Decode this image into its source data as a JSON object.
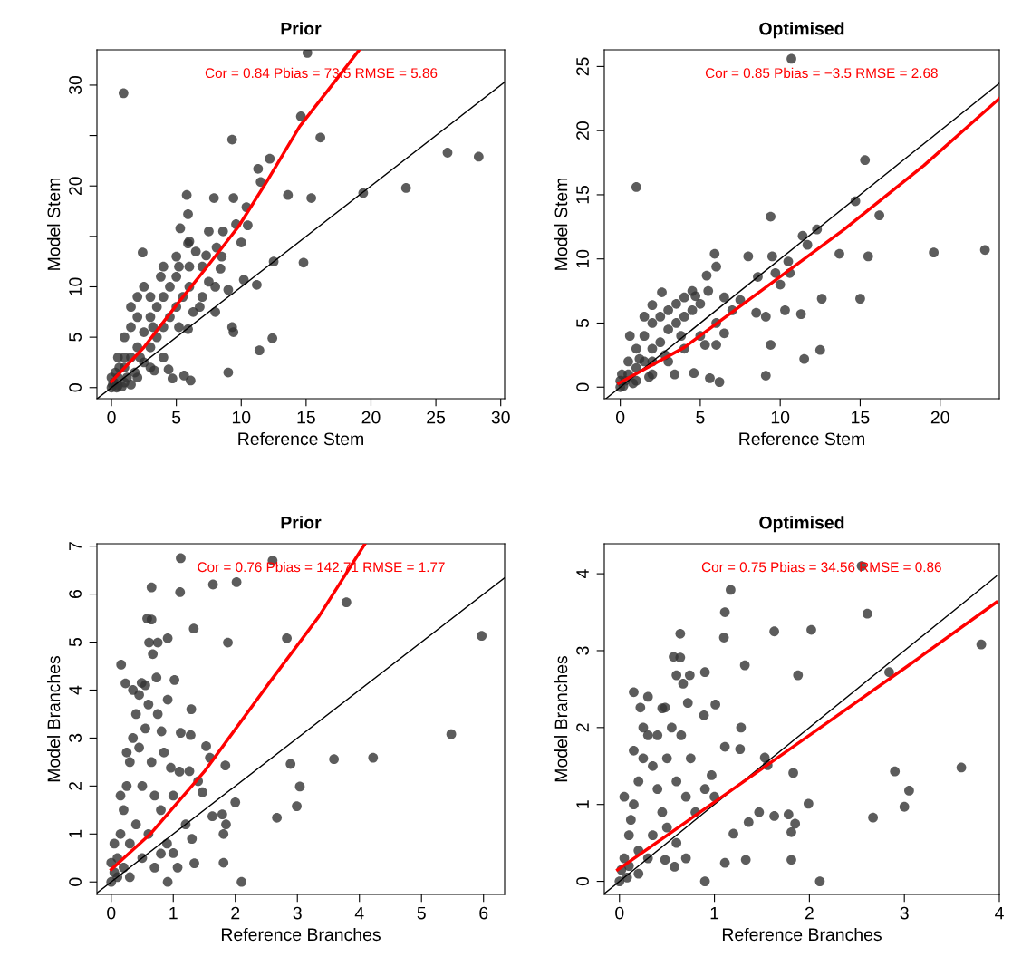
{
  "chart_data": [
    {
      "type": "scatter",
      "title": "Prior",
      "xlabel": "Reference Stem",
      "ylabel": "Model Stem",
      "annotations": [
        "Cor = 0.84 Pbias = 73.5 RMSE = 5.86"
      ],
      "xlim": [
        -1.12,
        30.3
      ],
      "ylim": [
        -1.1,
        33.5
      ],
      "xticks": [
        0,
        5,
        10,
        15,
        20,
        25,
        30
      ],
      "yticks": [
        0,
        5,
        10,
        {
          "value": 15,
          "label": null
        },
        20,
        {
          "value": 25,
          "label": null
        },
        30
      ],
      "series": [
        {
          "marker": "circle",
          "color": "#333333",
          "x": [
            15.1,
            0.93,
            14.6,
            9.3,
            16.1,
            25.9,
            28.3,
            12.2,
            11.3,
            11.5,
            5.8,
            7.9,
            9.4,
            13.6,
            15.4,
            19.4,
            22.7,
            10.4,
            5.9,
            9.6,
            10.5,
            8.6,
            5.3,
            5.9,
            10.0,
            2.4,
            8.1,
            12.5,
            14.8,
            7.3,
            8.4,
            10.2,
            11.2,
            9.0,
            6.3,
            5.2,
            5.9,
            9.3,
            9.4,
            12.4,
            11.4,
            9.0,
            3.3,
            4.4,
            4.7,
            5.6,
            6.1,
            0,
            0.2,
            0.5,
            1,
            1.5,
            2,
            2.5,
            3,
            3.5,
            4,
            4.5,
            5,
            1,
            2,
            3,
            0.5,
            1.5,
            2,
            3,
            4,
            1,
            0.5,
            3,
            4,
            5,
            6,
            6,
            6.5,
            7,
            7.5,
            8,
            2,
            1.5,
            2.5,
            4,
            5,
            6,
            1,
            2.5,
            0.3,
            0.8,
            1.8,
            3.5,
            4.5,
            5.5,
            7,
            8,
            0.1,
            0.6,
            1.2,
            2.2,
            3.2,
            3.8,
            5.2,
            6.8,
            7.5,
            8.5,
            0,
            0.4,
            1.5
          ],
          "values": [
            33.2,
            29.2,
            26.9,
            24.6,
            24.8,
            23.3,
            22.9,
            22.7,
            21.7,
            20.4,
            19.1,
            18.8,
            18.8,
            19.1,
            18.8,
            19.3,
            19.8,
            17.9,
            17.2,
            16.2,
            16.1,
            15.5,
            15.8,
            14.3,
            14.4,
            13.4,
            13.9,
            12.5,
            12.4,
            13.1,
            11.8,
            10.7,
            10.2,
            9.7,
            7.5,
            6.0,
            5.8,
            6.0,
            5.5,
            4.9,
            3.7,
            1.5,
            1.7,
            1.8,
            0.9,
            1.2,
            0.7,
            0,
            0.5,
            1,
            2,
            3,
            4,
            5.5,
            7,
            8,
            9,
            10,
            11,
            5,
            7,
            9,
            3,
            6,
            1,
            2,
            3,
            0.5,
            0.2,
            4,
            6,
            8,
            10,
            12,
            13.5,
            12,
            10.5,
            10,
            9,
            8,
            10,
            12,
            13,
            14.5,
            3,
            2.5,
            1.5,
            0.1,
            1.5,
            5,
            7,
            9,
            9,
            7.5,
            0.3,
            2,
            1,
            3,
            6,
            11,
            12,
            8,
            15.5,
            13,
            1,
            0,
            0.3
          ]
        },
        {
          "type": "line",
          "color": "#000000",
          "x": [
            -1.1,
            30.3
          ],
          "values": [
            -1.1,
            30.3
          ]
        },
        {
          "type": "line",
          "color": "#ff0000",
          "x": [
            0,
            2.5,
            5.2,
            7.5,
            9.8,
            12,
            14.5,
            17,
            19.1
          ],
          "values": [
            0.6,
            4,
            8.5,
            12.2,
            16,
            20.5,
            25.9,
            30,
            33.5
          ]
        }
      ]
    },
    {
      "type": "scatter",
      "title": "Optimised",
      "xlabel": "Reference Stem",
      "ylabel": "Model Stem",
      "annotations": [
        "Cor = 0.85 Pbias = −3.5 RMSE = 2.68"
      ],
      "xlim": [
        -1.0,
        23.7
      ],
      "ylim": [
        -0.9,
        26.3
      ],
      "xticks": [
        0,
        5,
        10,
        15,
        20
      ],
      "yticks": [
        0,
        5,
        10,
        15,
        20,
        25
      ],
      "series": [
        {
          "marker": "circle",
          "color": "#333333",
          "x": [
            10.7,
            1.0,
            15.3,
            14.7,
            16.2,
            9.4,
            12.3,
            11.4,
            11.7,
            19.6,
            22.8,
            13.7,
            15.5,
            5.9,
            8.0,
            9.5,
            10.5,
            6.0,
            9.7,
            10.6,
            8.6,
            10.0,
            2.6,
            12.6,
            15.0,
            10.3,
            11.3,
            9.1,
            8.5,
            6.5,
            5.3,
            6.0,
            9.4,
            12.5,
            11.5,
            9.1,
            6.2,
            5.6,
            4.6,
            3.4,
            2.0,
            4.7,
            5.4,
            0,
            0.3,
            0.5,
            1,
            1.5,
            2,
            2.5,
            3,
            3.5,
            4,
            4.5,
            5,
            0.5,
            1,
            1.5,
            2,
            3,
            4,
            1,
            2,
            3,
            4,
            5,
            6,
            7,
            2,
            0.2,
            0.8,
            1.2,
            2.5,
            3.5,
            4.5,
            5.5,
            6.5,
            7.5,
            0.1,
            1.8,
            2.8,
            3.8,
            0.6,
            1.5,
            0
          ],
          "values": [
            25.6,
            15.6,
            17.7,
            14.5,
            13.4,
            13.3,
            12.3,
            11.8,
            11.1,
            10.5,
            10.7,
            10.4,
            10.2,
            10.4,
            10.2,
            10.2,
            9.8,
            9.4,
            8.9,
            8.9,
            8.6,
            8.0,
            7.4,
            6.9,
            6.9,
            6.0,
            5.7,
            5.5,
            5.8,
            4.2,
            3.3,
            3.3,
            3.3,
            2.9,
            2.2,
            0.9,
            0.4,
            0.7,
            1.1,
            1.0,
            6.4,
            7.1,
            8.7,
            0,
            0.5,
            1,
            1.5,
            2,
            3,
            3.5,
            4.5,
            5,
            5.5,
            6,
            6.5,
            2,
            3,
            4,
            5,
            6,
            7,
            0.5,
            1,
            2,
            3,
            4,
            5,
            6,
            2,
            0.1,
            0.3,
            2.2,
            5.5,
            6.5,
            7.5,
            7.5,
            7,
            6.8,
            1,
            0.8,
            2.5,
            4,
            4,
            5.5,
            0.5
          ]
        },
        {
          "type": "line",
          "color": "#000000",
          "x": [
            -0.9,
            23.7
          ],
          "values": [
            -0.9,
            23.7
          ]
        },
        {
          "type": "line",
          "color": "#ff0000",
          "x": [
            -0.1,
            4,
            8.9,
            14,
            19,
            23.7
          ],
          "values": [
            0.3,
            3.1,
            7.6,
            12.3,
            17.3,
            22.5
          ]
        }
      ]
    },
    {
      "type": "scatter",
      "title": "Prior",
      "xlabel": "Reference Branches",
      "ylabel": "Model Branches",
      "annotations": [
        "Cor = 0.76 Pbias = 142.71 RMSE = 1.77"
      ],
      "xlim": [
        -0.23,
        6.34
      ],
      "ylim": [
        -0.26,
        7.05
      ],
      "xticks": [
        0,
        1,
        2,
        3,
        4,
        5,
        6
      ],
      "yticks": [
        0,
        1,
        2,
        3,
        4,
        5,
        6,
        7
      ],
      "series": [
        {
          "marker": "circle",
          "color": "#333333",
          "x": [
            1.12,
            2.6,
            0.65,
            1.11,
            1.64,
            2.02,
            3.79,
            0.58,
            0.65,
            1.33,
            5.97,
            0.91,
            2.83,
            0.61,
            0.75,
            1.88,
            0.67,
            0.16,
            0.23,
            0.49,
            0.73,
            1.02,
            0.91,
            1.29,
            0.81,
            1.12,
            1.28,
            5.48,
            1.53,
            1.59,
            1.84,
            2.89,
            3.59,
            4.22,
            0.96,
            1.26,
            1.47,
            3.04,
            2.99,
            2.0,
            2.67,
            1.63,
            1.79,
            1.85,
            1.81,
            1.81,
            1.34,
            1.07,
            0.91,
            2.1,
            0.8,
            0,
            0.05,
            0.1,
            0.15,
            0.2,
            0.25,
            0.3,
            0.35,
            0.4,
            0.45,
            0.5,
            0.55,
            0.6,
            0.65,
            0.7,
            0.3,
            0.4,
            0.5,
            0.6,
            0.8,
            1,
            1.1,
            1.2,
            0.9,
            0.2,
            0.1,
            0.3,
            0.05,
            0.15,
            0.25,
            0.45,
            0.55,
            0.75,
            0.85,
            1.0,
            1.3,
            1.4,
            0.7,
            0.0,
            0.35
          ],
          "values": [
            6.75,
            6.7,
            6.14,
            6.04,
            6.2,
            6.25,
            5.83,
            5.49,
            5.47,
            5.28,
            5.13,
            5.08,
            5.08,
            4.99,
            4.99,
            4.99,
            4.75,
            4.53,
            4.14,
            4.15,
            4.26,
            4.21,
            3.8,
            3.6,
            3.14,
            3.11,
            3.06,
            3.08,
            2.83,
            2.59,
            2.43,
            2.46,
            2.56,
            2.59,
            2.38,
            2.31,
            1.87,
            1.99,
            1.58,
            1.66,
            1.34,
            1.37,
            1.41,
            1.2,
            1.0,
            0.4,
            0.39,
            0.3,
            0.0,
            0.0,
            0.59,
            0,
            0.2,
            0.5,
            1,
            1.5,
            2,
            2.5,
            3,
            3.5,
            2.8,
            2,
            3.2,
            3.7,
            2.5,
            1.8,
            0.8,
            1.2,
            0.5,
            1,
            1.5,
            1.8,
            2.3,
            1.2,
            0.8,
            0.3,
            0.1,
            0.1,
            0.8,
            1.8,
            2.7,
            3.9,
            4.1,
            3.5,
            2.7,
            0.6,
            0.9,
            2.1,
            0.3,
            0.4,
            4.0
          ]
        },
        {
          "type": "line",
          "color": "#000000",
          "x": [
            -0.23,
            6.34
          ],
          "values": [
            -0.23,
            6.34
          ]
        },
        {
          "type": "line",
          "color": "#ff0000",
          "x": [
            0,
            0.63,
            1.5,
            2.58,
            3.35,
            4.09
          ],
          "values": [
            0.26,
            1.0,
            2.3,
            4.21,
            5.54,
            7.05
          ]
        }
      ]
    },
    {
      "type": "scatter",
      "title": "Optimised",
      "xlabel": "Reference Branches",
      "ylabel": "Model Branches",
      "annotations": [
        "Cor = 0.75 Pbias = 34.56 RMSE = 0.86"
      ],
      "xlim": [
        -0.16,
        4.0
      ],
      "ylim": [
        -0.17,
        4.39
      ],
      "xticks": [
        0,
        1,
        2,
        3,
        4
      ],
      "yticks": [
        0,
        1,
        2,
        3,
        4
      ],
      "series": [
        {
          "marker": "circle",
          "color": "#333333",
          "x": [
            2.55,
            1.17,
            1.11,
            2.61,
            1.63,
            2.02,
            0.64,
            1.1,
            3.81,
            0.57,
            0.64,
            1.32,
            2.84,
            1.88,
            0.9,
            0.6,
            0.74,
            0.67,
            0.15,
            1.01,
            0.22,
            0.48,
            0.72,
            0.89,
            1.28,
            1.11,
            1.27,
            1.53,
            1.56,
            1.83,
            2.9,
            3.6,
            3.05,
            3.0,
            2.67,
            1.99,
            1.63,
            1.78,
            1.85,
            1.81,
            1.47,
            1.36,
            1.2,
            1.33,
            1.11,
            1.81,
            0.9,
            2.11,
            0.58,
            0.48,
            0.97,
            0,
            0.05,
            0.1,
            0.15,
            0.2,
            0.25,
            0.3,
            0.35,
            0.4,
            0.45,
            0.5,
            0.1,
            0.2,
            0.3,
            0.05,
            0.15,
            0.25,
            0.4,
            0.5,
            0.6,
            0.7,
            0.8,
            0.9,
            0.35,
            0.6,
            0.7,
            0.2,
            0.12,
            0.55,
            0.65,
            0.75,
            1.0,
            0.3,
            0.45,
            0.02,
            0.08
          ],
          "values": [
            4.1,
            3.79,
            3.5,
            3.48,
            3.25,
            3.27,
            3.22,
            3.17,
            3.08,
            2.92,
            2.91,
            2.81,
            2.72,
            2.68,
            2.72,
            2.68,
            2.68,
            2.57,
            2.46,
            2.3,
            2.26,
            2.26,
            2.32,
            2.16,
            2.0,
            1.75,
            1.72,
            1.61,
            1.51,
            1.41,
            1.43,
            1.48,
            1.18,
            0.97,
            0.83,
            1.01,
            0.85,
            0.87,
            0.75,
            0.64,
            0.9,
            0.77,
            0.62,
            0.28,
            0.24,
            0.28,
            0.0,
            0.0,
            0.19,
            0.28,
            1.38,
            0,
            0.3,
            0.6,
            1,
            1.3,
            1.6,
            1.9,
            1.5,
            1.2,
            0.9,
            0.7,
            0.2,
            0.4,
            0.3,
            1.1,
            1.7,
            2.0,
            1.9,
            1.6,
            1.3,
            1.1,
            0.9,
            1.2,
            0.6,
            0.5,
            0.3,
            0.1,
            0.8,
            2.0,
            1.9,
            1.6,
            1.1,
            2.4,
            2.25,
            0.15,
            0.05
          ]
        },
        {
          "type": "line",
          "color": "#000000",
          "x": [
            -0.16,
            3.97
          ],
          "values": [
            -0.16,
            3.97
          ]
        },
        {
          "type": "line",
          "color": "#ff0000",
          "x": [
            -0.02,
            1.0,
            2.0,
            3.0,
            3.97
          ],
          "values": [
            0.15,
            1.03,
            1.9,
            2.77,
            3.63
          ]
        }
      ]
    }
  ]
}
